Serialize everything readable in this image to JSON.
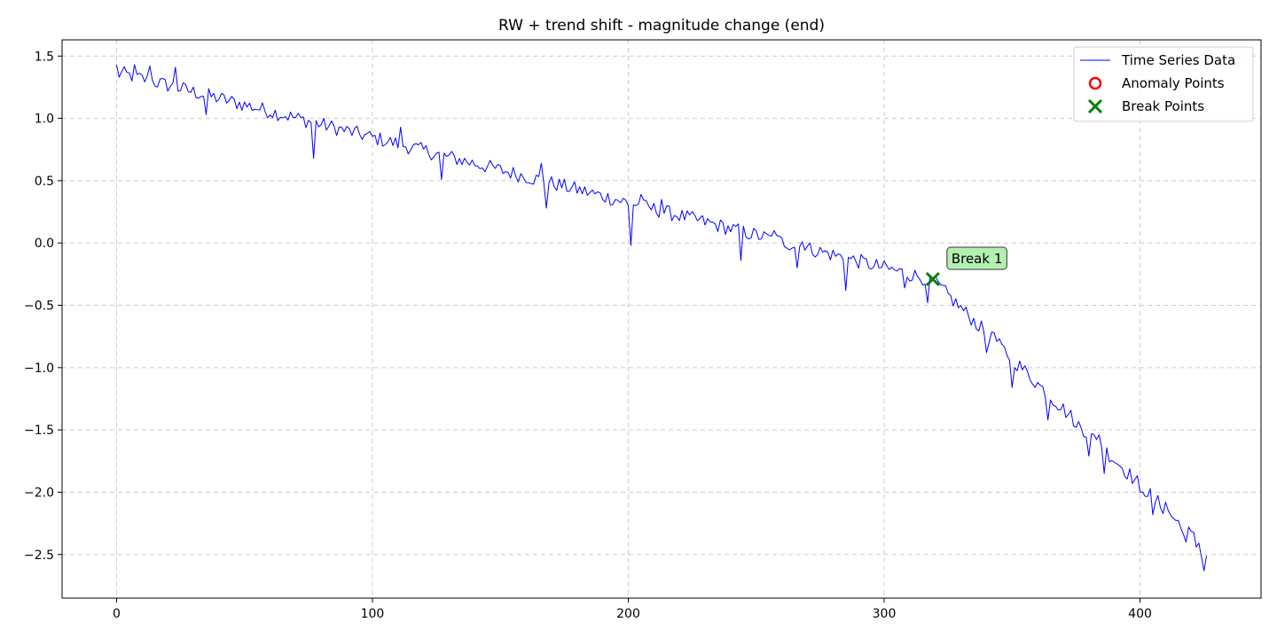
{
  "chart_data": {
    "type": "line",
    "title": "RW + trend shift - magnitude change (end)",
    "xlabel": "",
    "ylabel": "",
    "xlim": [
      -21.3,
      447.3
    ],
    "ylim": [
      -2.85,
      1.63
    ],
    "x_ticks": [
      0,
      100,
      200,
      300,
      400
    ],
    "x_tick_labels": [
      "0",
      "100",
      "200",
      "300",
      "400"
    ],
    "y_ticks": [
      1.5,
      1.0,
      0.5,
      0.0,
      -0.5,
      -1.0,
      -1.5,
      -2.0,
      -2.5
    ],
    "y_tick_labels": [
      "1.5",
      "1.0",
      "0.5",
      "0.0",
      "−0.5",
      "−1.0",
      "−1.5",
      "−2.0",
      "−2.5"
    ],
    "grid": true,
    "legend_position": "top-right",
    "series": [
      {
        "name": "Time Series Data",
        "kind": "line",
        "color": "#0000ff",
        "x_start": 0,
        "x_step": 1,
        "trend": {
          "start_value": 1.37,
          "pre_break_slope": -0.00523,
          "break_index": 319,
          "break_value": -0.3,
          "post_break_slope": -0.02025
        },
        "noise_amplitude": 0.06,
        "n_points": 427,
        "anchors": [
          {
            "x": 0,
            "y": 1.43
          },
          {
            "x": 1,
            "y": 1.33
          },
          {
            "x": 7,
            "y": 1.43
          },
          {
            "x": 13,
            "y": 1.42
          },
          {
            "x": 23,
            "y": 1.41
          },
          {
            "x": 35,
            "y": 1.03
          },
          {
            "x": 77,
            "y": 0.68
          },
          {
            "x": 111,
            "y": 0.93
          },
          {
            "x": 127,
            "y": 0.51
          },
          {
            "x": 166,
            "y": 0.64
          },
          {
            "x": 168,
            "y": 0.28
          },
          {
            "x": 200,
            "y": 0.3
          },
          {
            "x": 201,
            "y": -0.02
          },
          {
            "x": 205,
            "y": 0.39
          },
          {
            "x": 213,
            "y": 0.35
          },
          {
            "x": 244,
            "y": -0.14
          },
          {
            "x": 257,
            "y": 0.1
          },
          {
            "x": 266,
            "y": -0.2
          },
          {
            "x": 268,
            "y": 0.01
          },
          {
            "x": 285,
            "y": -0.38
          },
          {
            "x": 296,
            "y": -0.19
          },
          {
            "x": 308,
            "y": -0.36
          },
          {
            "x": 317,
            "y": -0.48
          },
          {
            "x": 319,
            "y": -0.3
          },
          {
            "x": 340,
            "y": -0.88
          },
          {
            "x": 343,
            "y": -0.72
          },
          {
            "x": 350,
            "y": -1.16
          },
          {
            "x": 364,
            "y": -1.42
          },
          {
            "x": 375,
            "y": -1.48
          },
          {
            "x": 380,
            "y": -1.71
          },
          {
            "x": 384,
            "y": -1.54
          },
          {
            "x": 386,
            "y": -1.85
          },
          {
            "x": 400,
            "y": -2.0
          },
          {
            "x": 405,
            "y": -2.18
          },
          {
            "x": 410,
            "y": -2.08
          },
          {
            "x": 416,
            "y": -2.29
          },
          {
            "x": 418,
            "y": -2.4
          },
          {
            "x": 422,
            "y": -2.44
          },
          {
            "x": 424,
            "y": -2.52
          },
          {
            "x": 425,
            "y": -2.63
          },
          {
            "x": 426,
            "y": -2.51
          }
        ]
      },
      {
        "name": "Anomaly Points",
        "kind": "scatter",
        "marker": "circle",
        "color": "#ff0000",
        "points": []
      },
      {
        "name": "Break Points",
        "kind": "scatter",
        "marker": "x",
        "color": "#008000",
        "points": [
          {
            "x": 319,
            "y": -0.29
          }
        ]
      }
    ],
    "annotations": [
      {
        "text": "Break 1",
        "x": 319,
        "y": -0.29,
        "box_color": "#b2f0b2",
        "border_color": "#333333"
      }
    ]
  }
}
